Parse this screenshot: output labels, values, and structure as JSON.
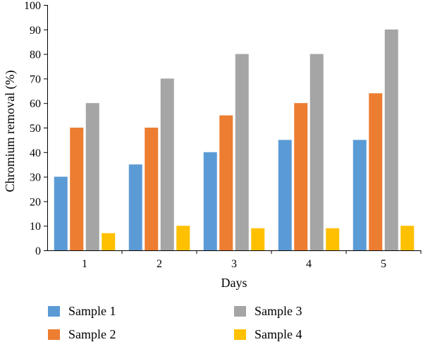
{
  "chart_data": {
    "type": "bar",
    "xlabel": "Days",
    "ylabel": "Chromium removal (%)",
    "ylim": [
      0,
      100
    ],
    "yticks": [
      0,
      10,
      20,
      30,
      40,
      50,
      60,
      70,
      80,
      90,
      100
    ],
    "categories": [
      "1",
      "2",
      "3",
      "4",
      "5"
    ],
    "grid": false,
    "legend_position": "bottom",
    "series": [
      {
        "name": "Sample 1",
        "color": "#5b9bd5",
        "values": [
          30,
          35,
          40,
          45,
          45
        ]
      },
      {
        "name": "Sample 2",
        "color": "#ed7d31",
        "values": [
          50,
          50,
          55,
          60,
          64
        ]
      },
      {
        "name": "Sample 3",
        "color": "#a5a5a5",
        "values": [
          60,
          70,
          80,
          80,
          90
        ]
      },
      {
        "name": "Sample 4",
        "color": "#ffc000",
        "values": [
          7,
          10,
          9,
          9,
          10
        ]
      }
    ]
  }
}
